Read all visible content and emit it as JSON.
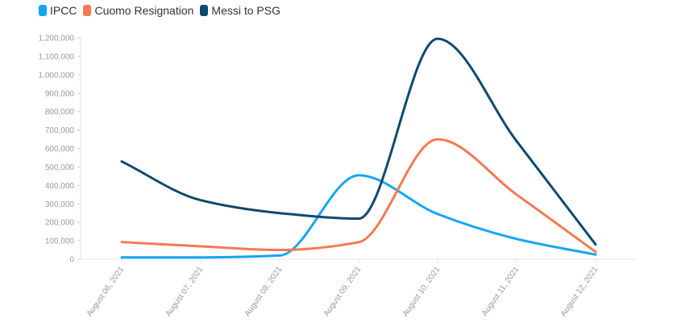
{
  "chart_data": {
    "type": "line",
    "title": "",
    "xlabel": "",
    "ylabel": "",
    "ylim": [
      0,
      1200000
    ],
    "yticks": [
      "0",
      "100,000",
      "200,000",
      "300,000",
      "400,000",
      "500,000",
      "600,000",
      "700,000",
      "800,000",
      "900,000",
      "1,000,000",
      "1,100,000",
      "1,200,000"
    ],
    "categories": [
      "August 06, 2021",
      "August 07, 2021",
      "August 08, 2021",
      "August 09, 2021",
      "August 10, 2021",
      "August 11, 2021",
      "August 12, 2021"
    ],
    "legend_position": "top-left",
    "series": [
      {
        "name": "IPCC",
        "color": "#13a6f2",
        "values": [
          10000,
          10000,
          20000,
          455000,
          245000,
          110000,
          25000
        ]
      },
      {
        "name": "Cuomo Resignation",
        "color": "#f27a54",
        "values": [
          93000,
          70000,
          50000,
          92000,
          650000,
          350000,
          40000
        ]
      },
      {
        "name": "Messi to PSG",
        "color": "#0c4a6e",
        "values": [
          530000,
          320000,
          250000,
          220000,
          1195000,
          640000,
          80000
        ]
      }
    ]
  }
}
